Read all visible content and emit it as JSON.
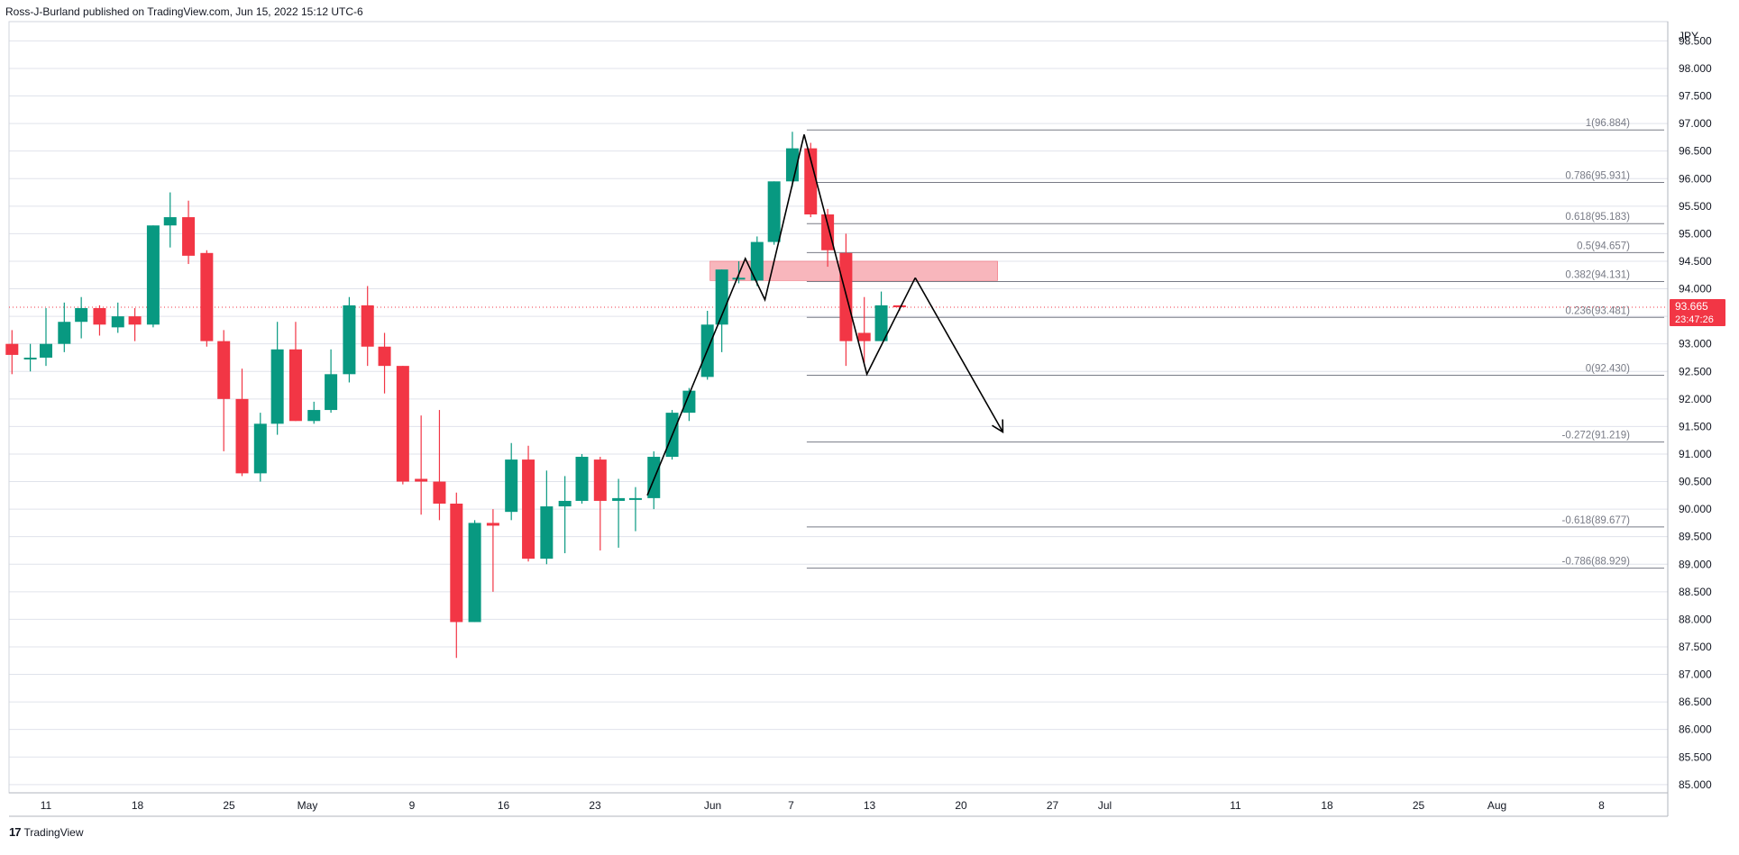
{
  "header": {
    "publisher": "Ross-J-Burland published on TradingView.com, Jun 15, 2022 15:12 UTC-6"
  },
  "footer": {
    "logo_glyph": "17",
    "brand": "TradingView"
  },
  "chart_data": {
    "type": "candlestick",
    "currency": "JPY",
    "ylim": [
      84.85,
      98.85
    ],
    "y_ticks": [
      "98.500",
      "98.000",
      "97.500",
      "97.000",
      "96.500",
      "96.000",
      "95.500",
      "95.000",
      "94.500",
      "94.000",
      "93.500",
      "93.000",
      "92.500",
      "92.000",
      "91.500",
      "91.000",
      "90.500",
      "90.000",
      "89.500",
      "89.000",
      "88.500",
      "88.000",
      "87.500",
      "87.000",
      "86.500",
      "86.000",
      "85.500",
      "85.000"
    ],
    "x_ticks": [
      {
        "label": "11",
        "day": 0
      },
      {
        "label": "18",
        "day": 7
      },
      {
        "label": "25",
        "day": 14
      },
      {
        "label": "May",
        "day": 20
      },
      {
        "label": "9",
        "day": 28
      },
      {
        "label": "16",
        "day": 35
      },
      {
        "label": "23",
        "day": 42
      },
      {
        "label": "Jun",
        "day": 51
      },
      {
        "label": "7",
        "day": 57
      },
      {
        "label": "13",
        "day": 63
      },
      {
        "label": "20",
        "day": 70
      },
      {
        "label": "27",
        "day": 77
      },
      {
        "label": "Jul",
        "day": 81
      },
      {
        "label": "11",
        "day": 91
      },
      {
        "label": "18",
        "day": 98
      },
      {
        "label": "25",
        "day": 105
      },
      {
        "label": "Aug",
        "day": 111
      },
      {
        "label": "8",
        "day": 119
      }
    ],
    "candles": [
      {
        "day": -2.6,
        "o": 93.0,
        "h": 93.25,
        "l": 92.45,
        "c": 92.8
      },
      {
        "day": -1.2,
        "o": 92.75,
        "h": 93.0,
        "l": 92.5,
        "c": 92.75
      },
      {
        "day": 0,
        "o": 92.75,
        "h": 93.65,
        "l": 92.6,
        "c": 93.0
      },
      {
        "day": 1.4,
        "o": 93.0,
        "h": 93.75,
        "l": 92.85,
        "c": 93.4
      },
      {
        "day": 2.7,
        "o": 93.4,
        "h": 93.85,
        "l": 93.1,
        "c": 93.65
      },
      {
        "day": 4.1,
        "o": 93.65,
        "h": 93.7,
        "l": 93.15,
        "c": 93.35
      },
      {
        "day": 5.5,
        "o": 93.3,
        "h": 93.75,
        "l": 93.2,
        "c": 93.5
      },
      {
        "day": 6.8,
        "o": 93.5,
        "h": 93.65,
        "l": 93.05,
        "c": 93.35
      },
      {
        "day": 8.2,
        "o": 93.35,
        "h": 95.15,
        "l": 93.3,
        "c": 95.15
      },
      {
        "day": 9.5,
        "o": 95.15,
        "h": 95.75,
        "l": 94.75,
        "c": 95.3
      },
      {
        "day": 10.9,
        "o": 95.3,
        "h": 95.6,
        "l": 94.45,
        "c": 94.6
      },
      {
        "day": 12.3,
        "o": 94.65,
        "h": 94.7,
        "l": 92.95,
        "c": 93.05
      },
      {
        "day": 13.6,
        "o": 93.05,
        "h": 93.25,
        "l": 91.05,
        "c": 92.0
      },
      {
        "day": 15.0,
        "o": 92.0,
        "h": 92.55,
        "l": 90.6,
        "c": 90.65
      },
      {
        "day": 16.4,
        "o": 90.65,
        "h": 91.75,
        "l": 90.5,
        "c": 91.55
      },
      {
        "day": 17.7,
        "o": 91.55,
        "h": 93.4,
        "l": 91.35,
        "c": 92.9
      },
      {
        "day": 19.1,
        "o": 92.9,
        "h": 93.4,
        "l": 91.6,
        "c": 91.6
      },
      {
        "day": 20.5,
        "o": 91.6,
        "h": 91.95,
        "l": 91.55,
        "c": 91.8
      },
      {
        "day": 21.8,
        "o": 91.8,
        "h": 92.9,
        "l": 91.75,
        "c": 92.45
      },
      {
        "day": 23.2,
        "o": 92.45,
        "h": 93.85,
        "l": 92.3,
        "c": 93.7
      },
      {
        "day": 24.6,
        "o": 93.7,
        "h": 94.05,
        "l": 92.6,
        "c": 92.95
      },
      {
        "day": 25.9,
        "o": 92.95,
        "h": 93.2,
        "l": 92.1,
        "c": 92.6
      },
      {
        "day": 27.3,
        "o": 92.6,
        "h": 92.6,
        "l": 90.45,
        "c": 90.5
      },
      {
        "day": 28.7,
        "o": 90.55,
        "h": 91.7,
        "l": 89.9,
        "c": 90.5
      },
      {
        "day": 30.1,
        "o": 90.5,
        "h": 91.8,
        "l": 89.8,
        "c": 90.1
      },
      {
        "day": 31.4,
        "o": 90.1,
        "h": 90.3,
        "l": 87.3,
        "c": 87.95
      },
      {
        "day": 32.8,
        "o": 87.95,
        "h": 89.8,
        "l": 87.95,
        "c": 89.75
      },
      {
        "day": 34.2,
        "o": 89.75,
        "h": 90.0,
        "l": 88.5,
        "c": 89.7
      },
      {
        "day": 35.6,
        "o": 89.95,
        "h": 91.2,
        "l": 89.8,
        "c": 90.9
      },
      {
        "day": 36.9,
        "o": 90.9,
        "h": 91.15,
        "l": 89.05,
        "c": 89.1
      },
      {
        "day": 38.3,
        "o": 89.1,
        "h": 90.7,
        "l": 89.0,
        "c": 90.05
      },
      {
        "day": 39.7,
        "o": 90.05,
        "h": 90.6,
        "l": 89.2,
        "c": 90.15
      },
      {
        "day": 41.0,
        "o": 90.15,
        "h": 91.0,
        "l": 90.1,
        "c": 90.95
      },
      {
        "day": 42.4,
        "o": 90.9,
        "h": 90.95,
        "l": 89.25,
        "c": 90.15
      },
      {
        "day": 43.8,
        "o": 90.15,
        "h": 90.55,
        "l": 89.3,
        "c": 90.2
      },
      {
        "day": 45.1,
        "o": 90.2,
        "h": 90.4,
        "l": 89.6,
        "c": 90.2
      },
      {
        "day": 46.5,
        "o": 90.2,
        "h": 91.05,
        "l": 90.0,
        "c": 90.95
      },
      {
        "day": 47.9,
        "o": 90.95,
        "h": 91.8,
        "l": 90.9,
        "c": 91.75
      },
      {
        "day": 49.2,
        "o": 91.75,
        "h": 92.2,
        "l": 91.6,
        "c": 92.15
      },
      {
        "day": 50.6,
        "o": 92.4,
        "h": 93.6,
        "l": 92.35,
        "c": 93.35
      },
      {
        "day": 51.7,
        "o": 93.35,
        "h": 94.35,
        "l": 92.85,
        "c": 94.35
      },
      {
        "day": 53.0,
        "o": 94.2,
        "h": 94.5,
        "l": 94.1,
        "c": 94.2
      },
      {
        "day": 54.4,
        "o": 94.15,
        "h": 94.95,
        "l": 94.05,
        "c": 94.85
      },
      {
        "day": 55.7,
        "o": 94.85,
        "h": 95.95,
        "l": 94.8,
        "c": 95.95
      },
      {
        "day": 57.1,
        "o": 95.95,
        "h": 96.85,
        "l": 95.85,
        "c": 96.55
      },
      {
        "day": 58.5,
        "o": 96.55,
        "h": 96.65,
        "l": 95.3,
        "c": 95.35
      },
      {
        "day": 59.8,
        "o": 95.35,
        "h": 95.45,
        "l": 94.4,
        "c": 94.7
      },
      {
        "day": 61.2,
        "o": 94.65,
        "h": 95.0,
        "l": 92.6,
        "c": 93.05
      },
      {
        "day": 62.6,
        "o": 93.2,
        "h": 93.85,
        "l": 92.65,
        "c": 93.05
      },
      {
        "day": 63.9,
        "o": 93.05,
        "h": 93.95,
        "l": 93.05,
        "c": 93.7
      },
      {
        "day": 65.3,
        "o": 93.7,
        "h": 93.7,
        "l": 93.6,
        "c": 93.665
      }
    ],
    "fib_levels": [
      {
        "label": "1(96.884)",
        "value": 96.884
      },
      {
        "label": "0.786(95.931)",
        "value": 95.931
      },
      {
        "label": "0.618(95.183)",
        "value": 95.183
      },
      {
        "label": "0.5(94.657)",
        "value": 94.657
      },
      {
        "label": "0.382(94.131)",
        "value": 94.131
      },
      {
        "label": "0.236(93.481)",
        "value": 93.481
      },
      {
        "label": "0(92.430)",
        "value": 92.43
      },
      {
        "label": "-0.272(91.219)",
        "value": 91.219
      },
      {
        "label": "-0.618(89.677)",
        "value": 89.677
      },
      {
        "label": "-0.786(88.929)",
        "value": 88.929
      }
    ],
    "resistance_zone": {
      "y_low": 94.15,
      "y_high": 94.5
    },
    "pattern_path": [
      {
        "day": 46.0,
        "value": 90.25
      },
      {
        "day": 53.5,
        "value": 94.55
      },
      {
        "day": 55.0,
        "value": 93.8
      },
      {
        "day": 58.0,
        "value": 96.8
      },
      {
        "day": 62.8,
        "value": 92.45
      },
      {
        "day": 66.5,
        "value": 94.2
      }
    ],
    "projection_arrow": [
      {
        "day": 66.5,
        "value": 94.2
      },
      {
        "day": 73.2,
        "value": 91.4
      }
    ],
    "last_price": {
      "value": 93.665,
      "label": "93.665",
      "countdown": "23:47:26"
    },
    "colors": {
      "up": "#089981",
      "down": "#f23645",
      "grid": "#e0e3eb",
      "fib": "#787b86",
      "zone_fill": "#f7a9b0",
      "zone_stroke": "#f06c78"
    }
  }
}
